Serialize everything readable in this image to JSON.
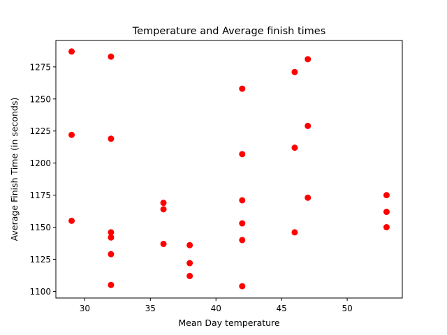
{
  "chart_data": {
    "type": "scatter",
    "title": "Temperature and Average finish times",
    "xlabel": "Mean Day temperature",
    "ylabel": "Average Finish Time (in seconds)",
    "xlim": [
      27.8,
      54.2
    ],
    "ylim": [
      1094.8,
      1295.6
    ],
    "xticks": [
      30,
      35,
      40,
      45,
      50
    ],
    "yticks": [
      1100,
      1125,
      1150,
      1175,
      1200,
      1225,
      1250,
      1275
    ],
    "grid": false,
    "legend": "none",
    "marker_color": "#ff0000",
    "points": [
      {
        "x": 29,
        "y": 1287
      },
      {
        "x": 29,
        "y": 1222
      },
      {
        "x": 29,
        "y": 1155
      },
      {
        "x": 32,
        "y": 1283
      },
      {
        "x": 32,
        "y": 1219
      },
      {
        "x": 32,
        "y": 1146
      },
      {
        "x": 32,
        "y": 1142
      },
      {
        "x": 32,
        "y": 1129
      },
      {
        "x": 32,
        "y": 1105
      },
      {
        "x": 36,
        "y": 1169
      },
      {
        "x": 36,
        "y": 1164
      },
      {
        "x": 36,
        "y": 1137
      },
      {
        "x": 38,
        "y": 1136
      },
      {
        "x": 38,
        "y": 1122
      },
      {
        "x": 38,
        "y": 1112
      },
      {
        "x": 42,
        "y": 1258
      },
      {
        "x": 42,
        "y": 1207
      },
      {
        "x": 42,
        "y": 1171
      },
      {
        "x": 42,
        "y": 1153
      },
      {
        "x": 42,
        "y": 1140
      },
      {
        "x": 42,
        "y": 1104
      },
      {
        "x": 46,
        "y": 1271
      },
      {
        "x": 46,
        "y": 1212
      },
      {
        "x": 46,
        "y": 1146
      },
      {
        "x": 47,
        "y": 1281
      },
      {
        "x": 47,
        "y": 1229
      },
      {
        "x": 47,
        "y": 1173
      },
      {
        "x": 53,
        "y": 1175
      },
      {
        "x": 53,
        "y": 1162
      },
      {
        "x": 53,
        "y": 1150
      }
    ]
  }
}
